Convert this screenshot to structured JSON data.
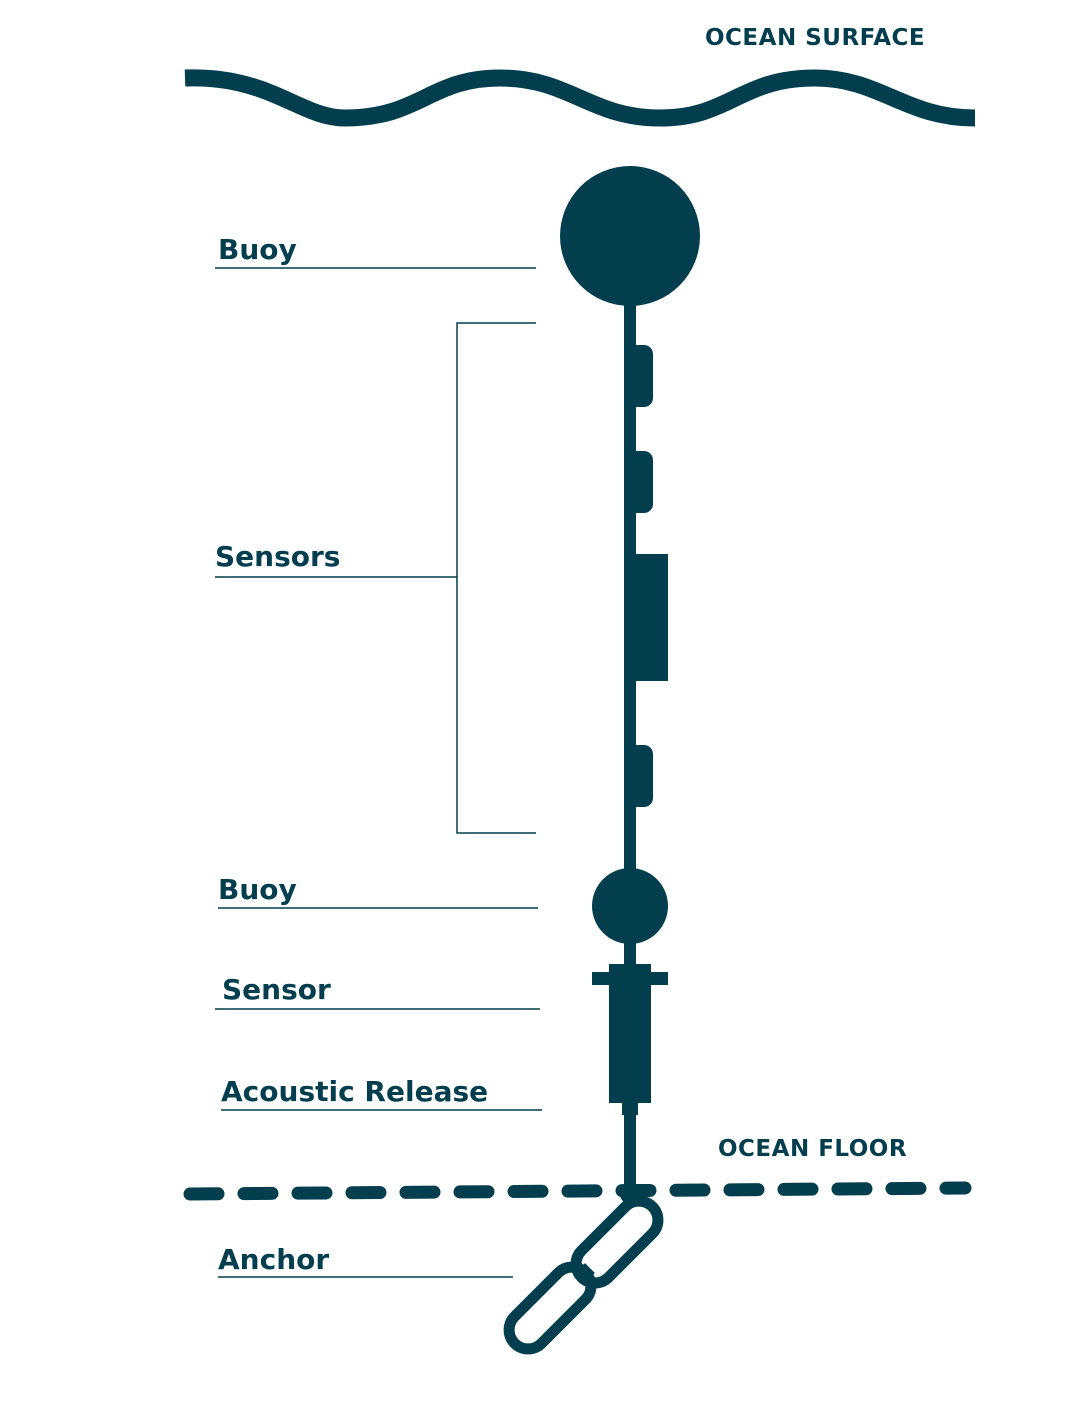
{
  "colors": {
    "ink": "#033e4e",
    "background": "#ffffff"
  },
  "environment": {
    "surface_label": "OCEAN SURFACE",
    "floor_label": "OCEAN FLOOR"
  },
  "components": {
    "buoy_top": "Buoy",
    "sensors": "Sensors",
    "buoy_bottom": "Buoy",
    "sensor": "Sensor",
    "acoustic_release": "Acoustic Release",
    "anchor": "Anchor"
  }
}
